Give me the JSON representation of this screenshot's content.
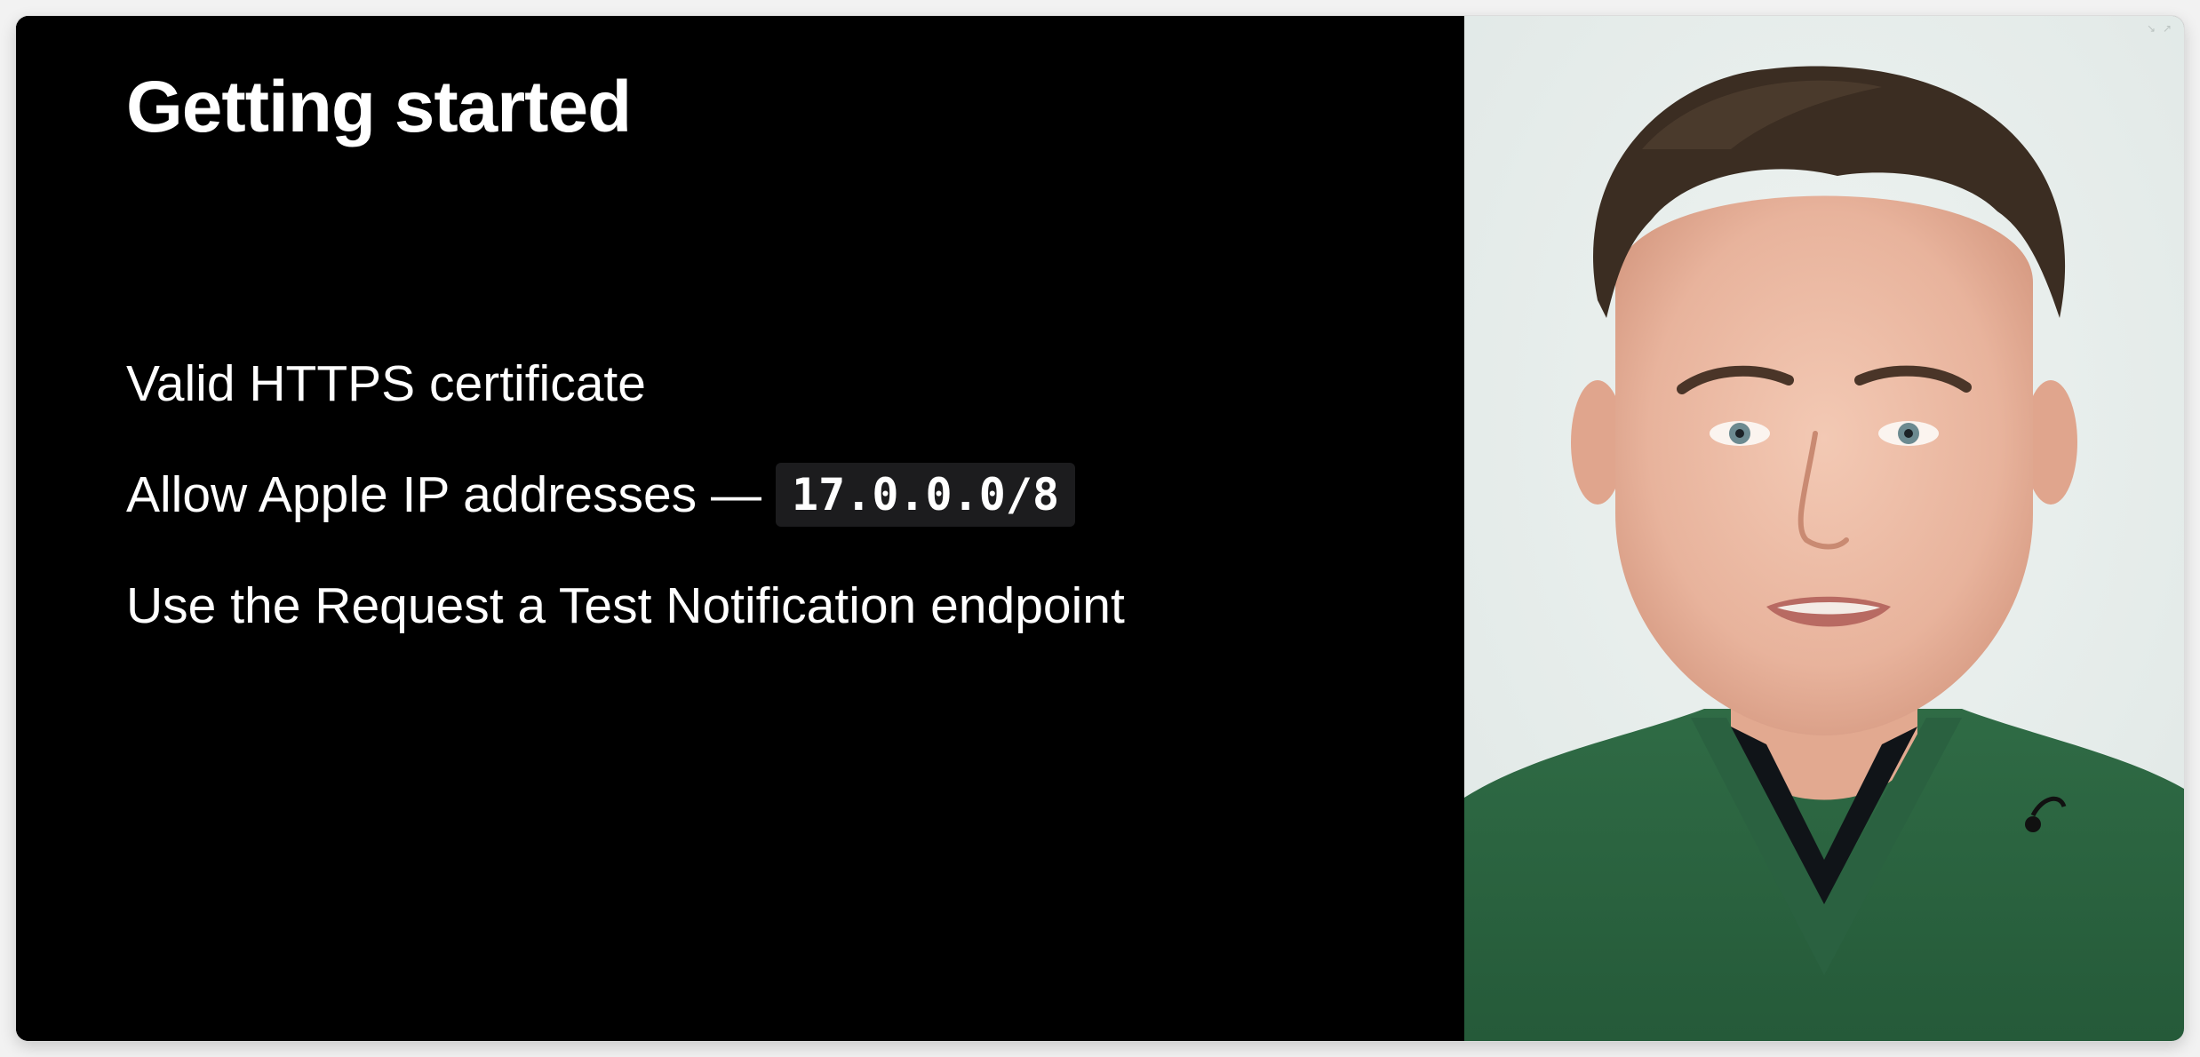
{
  "slide": {
    "title": "Getting started",
    "bullets": [
      {
        "text": "Valid HTTPS certificate"
      },
      {
        "text": "Allow Apple IP addresses —",
        "code": "17.0.0.0/8"
      },
      {
        "text": "Use the Request a Test Notification endpoint"
      }
    ]
  },
  "video": {
    "content": "presenter-video",
    "icons": [
      "collapse-icon",
      "expand-icon"
    ]
  },
  "colors": {
    "slide_background": "#000000",
    "slide_text": "#ffffff",
    "code_chip_background": "#1c1c1e",
    "video_background": "#e7eeec",
    "sweater": "#2f6b45"
  }
}
